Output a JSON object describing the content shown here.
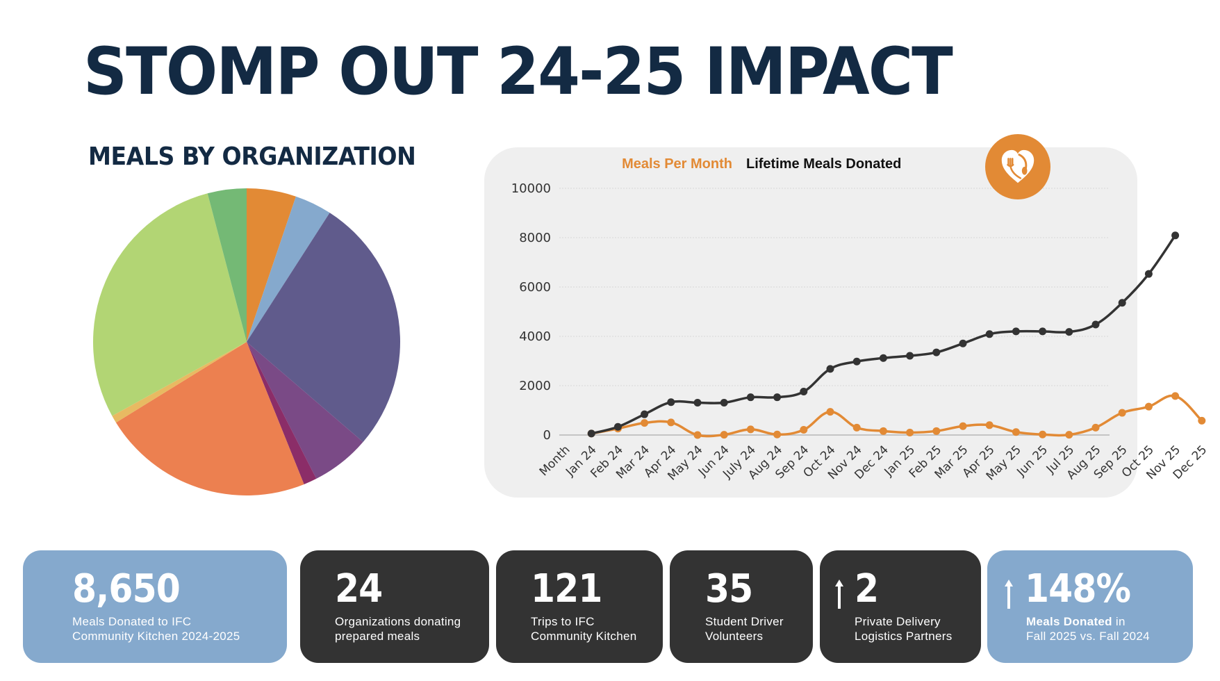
{
  "title": "STOMP OUT 24-25 IMPACT",
  "pie_title": "MEALS BY ORGANIZATION",
  "logo_icon": "heart-fork-spoon-icon",
  "colors": {
    "navy": "#132a43",
    "orange": "#e28a35",
    "dark": "#333333",
    "card_blue": "#85a9cd",
    "panel_bg": "#efefef"
  },
  "stats": [
    {
      "value": "8,650",
      "label": "Meals Donated to IFC\nCommunity Kitchen 2024-2025",
      "arrow": false
    },
    {
      "value": "24",
      "label": "Organizations donating\nprepared meals",
      "arrow": false
    },
    {
      "value": "121",
      "label": "Trips to IFC\nCommunity Kitchen",
      "arrow": false
    },
    {
      "value": "35",
      "label": "Student Driver\nVolunteers",
      "arrow": false
    },
    {
      "value": "2",
      "label": "Private Delivery\nLogistics Partners",
      "arrow": true
    },
    {
      "value": "148%",
      "label_bold": "Meals Donated",
      "label_rest": " in\nFall 2025 vs. Fall 2024",
      "arrow": true
    }
  ],
  "chart_data": [
    {
      "type": "pie",
      "title": "MEALS BY ORGANIZATION",
      "start_angle": "12 o'clock, clockwise",
      "slices": [
        {
          "color": "#e28a35",
          "percent": 5.2
        },
        {
          "color": "#85a9cd",
          "percent": 3.9
        },
        {
          "color": "#605b8c",
          "percent": 27.2
        },
        {
          "color": "#7a4a86",
          "percent": 6.2
        },
        {
          "color": "#8b2d68",
          "percent": 1.4
        },
        {
          "color": "#ec8050",
          "percent": 22.3
        },
        {
          "color": "#e8ba62",
          "percent": 0.8
        },
        {
          "color": "#b2d574",
          "percent": 28.9
        },
        {
          "color": "#74b975",
          "percent": 4.1
        }
      ]
    },
    {
      "type": "line",
      "title": "",
      "xlabel": "",
      "ylabel": "",
      "ylim": [
        0,
        10000
      ],
      "yticks": [
        0,
        2000,
        4000,
        6000,
        8000,
        10000
      ],
      "grid": true,
      "legend": "top-center",
      "categories": [
        "Month",
        "Jan 24",
        "Feb 24",
        "Mar 24",
        "Apr 24",
        "May 24",
        "Jun 24",
        "July 24",
        "Aug 24",
        "Sep 24",
        "Oct 24",
        "Nov 24",
        "Dec 24",
        "Jan 25",
        "Feb 25",
        "Mar 25",
        "Apr 25",
        "May 25",
        "Jun 25",
        "Jul 25",
        "Aug 25",
        "Sep 25",
        "Oct 25",
        "Nov 25",
        "Dec 25"
      ],
      "series": [
        {
          "name": "Meals Per Month",
          "color": "#e28a35",
          "values": [
            null,
            60,
            260,
            490,
            510,
            0,
            10,
            230,
            20,
            210,
            940,
            300,
            160,
            100,
            160,
            360,
            400,
            120,
            20,
            10,
            300,
            900,
            1150,
            1580,
            580
          ]
        },
        {
          "name": "Lifetime Meals Donated",
          "color": "#333333",
          "values": [
            null,
            60,
            330,
            840,
            1330,
            1310,
            1310,
            1530,
            1530,
            1760,
            2680,
            2980,
            3120,
            3210,
            3350,
            3710,
            4090,
            4200,
            4200,
            4180,
            4480,
            5360,
            6530,
            8090,
            null
          ]
        }
      ]
    }
  ]
}
